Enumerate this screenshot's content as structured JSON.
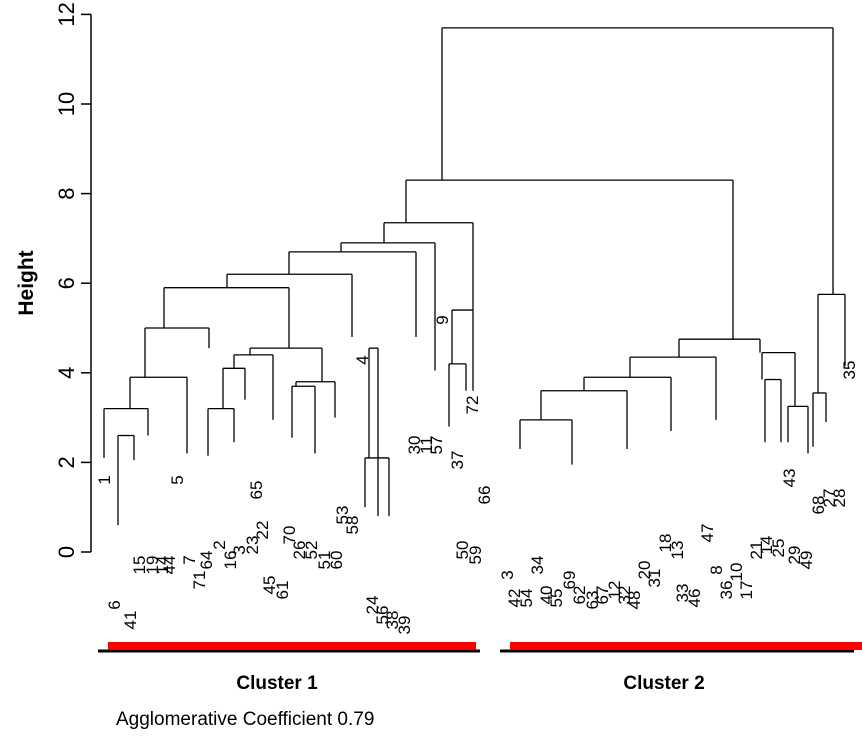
{
  "chart_data": {
    "type": "dendrogram",
    "title": "",
    "ylabel": "Height",
    "ylim": [
      0,
      12
    ],
    "yticks": [
      "0",
      "2",
      "4",
      "6",
      "8",
      "10",
      "12"
    ],
    "leaf_order": [
      "1",
      "6",
      "41",
      "15",
      "19",
      "14",
      "44",
      "5",
      "7",
      "71",
      "64",
      "2",
      "16",
      "3",
      "23",
      "22",
      "65",
      "45",
      "61",
      "70",
      "26",
      "52",
      "51",
      "60",
      "53",
      "58",
      "4",
      "24",
      "56",
      "38",
      "39",
      "30",
      "11",
      "57",
      "9",
      "37",
      "72",
      "50",
      "59",
      "66",
      "3",
      "42",
      "54",
      "34",
      "40",
      "55",
      "69",
      "62",
      "63",
      "67",
      "12",
      "32",
      "48",
      "20",
      "31",
      "18",
      "13",
      "33",
      "46",
      "47",
      "8",
      "36",
      "10",
      "17",
      "21",
      "14",
      "25",
      "29",
      "49",
      "43",
      "27",
      "68",
      "28",
      "35"
    ],
    "merges": [
      {
        "height": 11.7,
        "note": "root"
      },
      {
        "height": 8.3
      },
      {
        "height": 7.35
      },
      {
        "height": 6.9
      },
      {
        "height": 6.7
      },
      {
        "height": 6.2
      },
      {
        "height": 5.9
      },
      {
        "height": 5.75
      },
      {
        "height": 5.4
      },
      {
        "height": 5.0
      },
      {
        "height": 4.75
      },
      {
        "height": 4.55
      },
      {
        "height": 4.4
      },
      {
        "height": 4.1
      },
      {
        "height": 3.9
      },
      {
        "height": 3.8
      },
      {
        "height": 3.2
      },
      {
        "height": 2.95
      },
      {
        "height": 2.6
      },
      {
        "height": 2.3
      },
      {
        "height": 2.1
      },
      {
        "height": 1.9
      },
      {
        "height": 1.55
      },
      {
        "height": 1.3
      },
      {
        "height": 0.8
      }
    ],
    "clusters": [
      {
        "name": "Cluster 1",
        "color": "#ff0000"
      },
      {
        "name": "Cluster 2",
        "color": "#ff0000"
      }
    ],
    "agglomerative_coefficient": 0.79
  },
  "footer": {
    "cluster1_label": "Cluster 1",
    "cluster2_label": "Cluster 2",
    "coefficient_text": "Agglomerative Coefficient 0.79"
  },
  "colors": {
    "line": "#000000",
    "cluster_bar": "#ff0000"
  }
}
